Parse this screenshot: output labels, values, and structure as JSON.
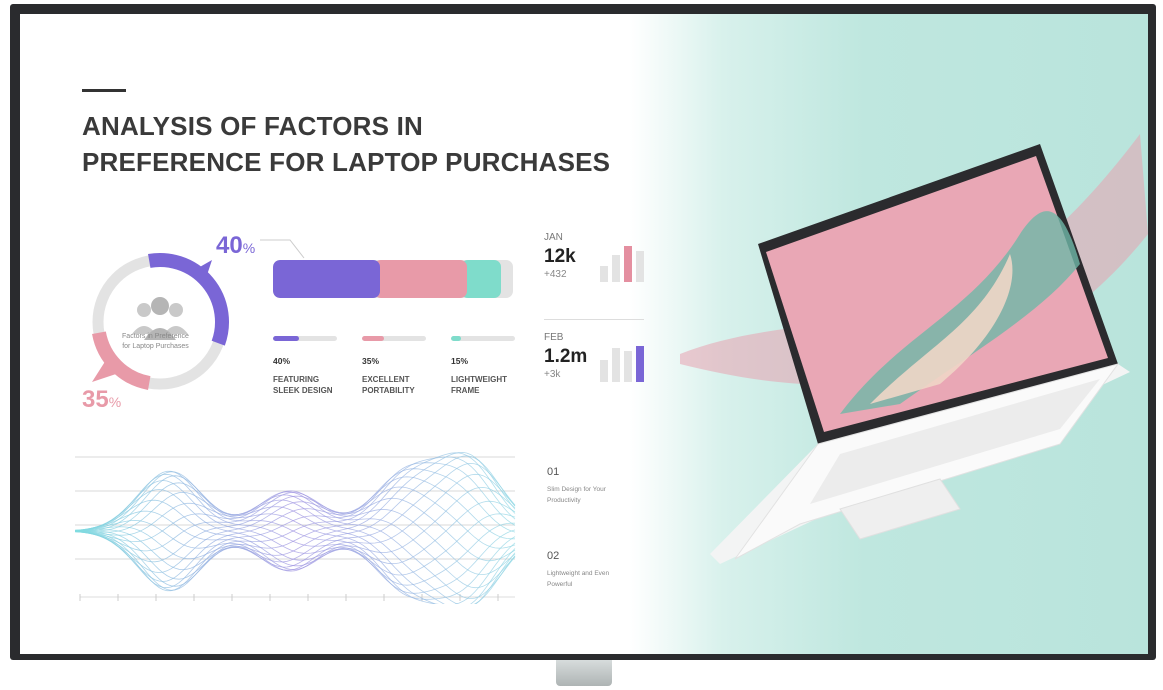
{
  "title": [
    "ANALYSIS OF FACTORS IN",
    "PREFERENCE FOR LAPTOP PURCHASES"
  ],
  "donut": {
    "center_label": [
      "Factors in Preference",
      "for Laptop Purchases"
    ],
    "big_percent": {
      "value": "40",
      "unit": "%"
    },
    "small_percent": {
      "value": "35",
      "unit": "%"
    },
    "icon": "people-group-icon"
  },
  "factors": [
    {
      "percent": 40,
      "value": "40%",
      "label": [
        "FEATURING",
        "SLEEK DESIGN"
      ],
      "color": "#7a66d6"
    },
    {
      "percent": 35,
      "value": "35%",
      "label": [
        "EXCELLENT",
        "PORTABILITY"
      ],
      "color": "#e89aa8"
    },
    {
      "percent": 15,
      "value": "15%",
      "label": [
        "LIGHTWEIGHT",
        "FRAME"
      ],
      "color": "#7fdccb"
    }
  ],
  "stats": [
    {
      "month": "JAN",
      "value": "12k",
      "delta": "+432",
      "bars": [
        0.45,
        0.75,
        1.0,
        0.85
      ],
      "highlight": 2,
      "color": "#e48fa0"
    },
    {
      "month": "FEB",
      "value": "1.2m",
      "delta": "+3k",
      "bars": [
        0.6,
        0.95,
        0.85,
        1.0
      ],
      "highlight": 3,
      "color": "#7a66d6"
    }
  ],
  "points": [
    {
      "num": "01",
      "text": [
        "Slim Design for Your",
        "Productivity"
      ]
    },
    {
      "num": "02",
      "text": [
        "Lightweight and Even",
        "Powerful"
      ]
    }
  ],
  "colors": {
    "purple": "#7a66d6",
    "pink": "#e89aa8",
    "mint": "#7fdccb",
    "track": "#e3e3e3"
  }
}
